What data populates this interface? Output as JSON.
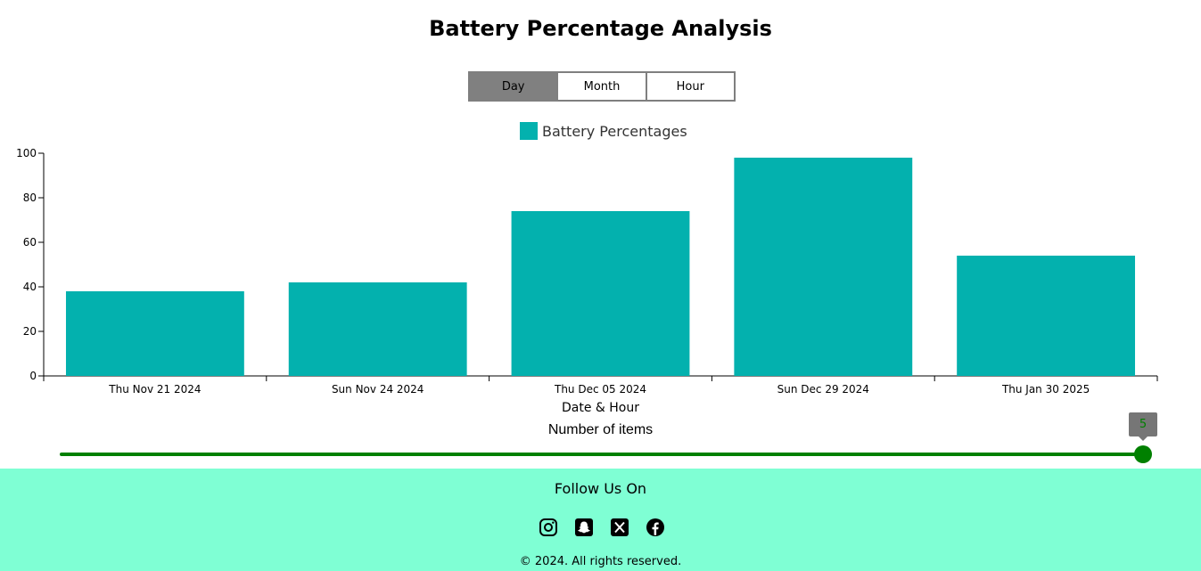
{
  "page": {
    "title": "Battery Percentage Analysis"
  },
  "toggles": [
    {
      "label": "Day",
      "active": true
    },
    {
      "label": "Month",
      "active": false
    },
    {
      "label": "Hour",
      "active": false
    }
  ],
  "chart_data": {
    "type": "bar",
    "title": "",
    "categories": [
      "Thu Nov 21 2024",
      "Sun Nov 24 2024",
      "Thu Dec 05 2024",
      "Sun Dec 29 2024",
      "Thu Jan 30 2025"
    ],
    "series": [
      {
        "name": "Battery Percentages",
        "values": [
          38,
          42,
          74,
          98,
          54
        ],
        "color": "#03b1ae"
      }
    ],
    "xlabel": "Date & Hour",
    "ylabel": "",
    "ylim": [
      0,
      100
    ],
    "yticks": [
      0,
      20,
      40,
      60,
      80,
      100
    ],
    "grid": false,
    "legend": "top-center"
  },
  "slider": {
    "label": "Number of items",
    "value": 5,
    "min": 1,
    "max": 5,
    "color": "#008000"
  },
  "footer": {
    "title": "Follow Us On",
    "icons": [
      "instagram-icon",
      "snapchat-icon",
      "x-twitter-icon",
      "facebook-icon"
    ],
    "copyright": "© 2024. All rights reserved.",
    "background": "#7fffd4"
  }
}
